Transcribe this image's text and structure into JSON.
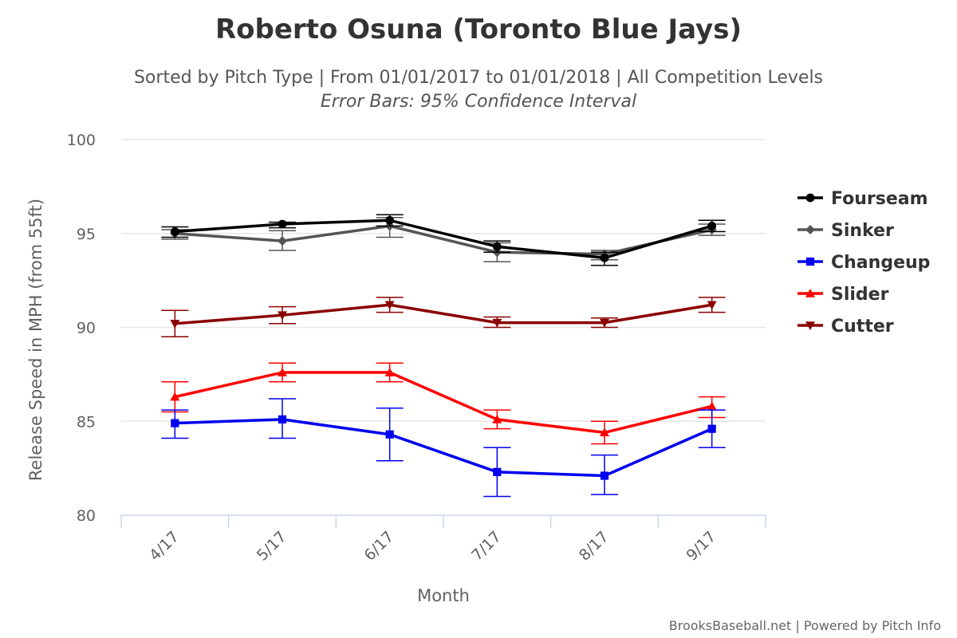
{
  "chart_data": {
    "type": "line",
    "title": "Roberto Osuna (Toronto Blue Jays)",
    "subtitle": "Sorted by Pitch Type | From 01/01/2017 to 01/01/2018 | All Competition Levels",
    "subtitle2": "Error Bars: 95% Confidence Interval",
    "xlabel": "Month",
    "ylabel": "Release Speed in MPH (from 55ft)",
    "categories": [
      "4/17",
      "5/17",
      "6/17",
      "7/17",
      "8/17",
      "9/17"
    ],
    "ylim": [
      80,
      100
    ],
    "yticks": [
      80,
      85,
      90,
      95,
      100
    ],
    "grid": true,
    "legend_position": "right",
    "credits": "BrooksBaseball.net | Powered by Pitch Info",
    "series": [
      {
        "name": "Fourseam",
        "color": "#000000",
        "marker": "circle",
        "values": [
          95.1,
          95.5,
          95.7,
          94.3,
          93.7,
          95.4
        ],
        "errors": [
          [
            94.8,
            95.35
          ],
          [
            95.3,
            95.6
          ],
          [
            95.4,
            96.0
          ],
          [
            94.0,
            94.6
          ],
          [
            93.3,
            94.0
          ],
          [
            95.1,
            95.7
          ]
        ]
      },
      {
        "name": "Sinker",
        "color": "#555555",
        "marker": "diamond",
        "values": [
          95.0,
          94.6,
          95.4,
          94.0,
          93.9,
          95.2
        ],
        "errors": [
          [
            94.7,
            95.2
          ],
          [
            94.1,
            95.15
          ],
          [
            94.8,
            95.85
          ],
          [
            93.5,
            94.5
          ],
          [
            93.6,
            94.1
          ],
          [
            94.9,
            95.5
          ]
        ]
      },
      {
        "name": "Changeup",
        "color": "#0000ee",
        "marker": "square",
        "values": [
          84.9,
          85.1,
          84.3,
          82.3,
          82.1,
          84.6
        ],
        "errors": [
          [
            84.1,
            85.6
          ],
          [
            84.1,
            86.2
          ],
          [
            82.9,
            85.7
          ],
          [
            81.0,
            83.6
          ],
          [
            81.1,
            83.2
          ],
          [
            83.6,
            85.6
          ]
        ]
      },
      {
        "name": "Slider",
        "color": "#ff0000",
        "marker": "triangle-up",
        "values": [
          86.3,
          87.6,
          87.6,
          85.1,
          84.4,
          85.8
        ],
        "errors": [
          [
            85.5,
            87.1
          ],
          [
            87.1,
            88.1
          ],
          [
            87.1,
            88.1
          ],
          [
            84.6,
            85.6
          ],
          [
            83.8,
            85.0
          ],
          [
            85.2,
            86.3
          ]
        ]
      },
      {
        "name": "Cutter",
        "color": "#8b0000",
        "marker": "triangle-down",
        "values": [
          90.2,
          90.65,
          91.2,
          90.25,
          90.25,
          91.2
        ],
        "errors": [
          [
            89.5,
            90.9
          ],
          [
            90.2,
            91.1
          ],
          [
            90.8,
            91.6
          ],
          [
            90.0,
            90.55
          ],
          [
            90.0,
            90.5
          ],
          [
            90.8,
            91.6
          ]
        ]
      }
    ]
  }
}
